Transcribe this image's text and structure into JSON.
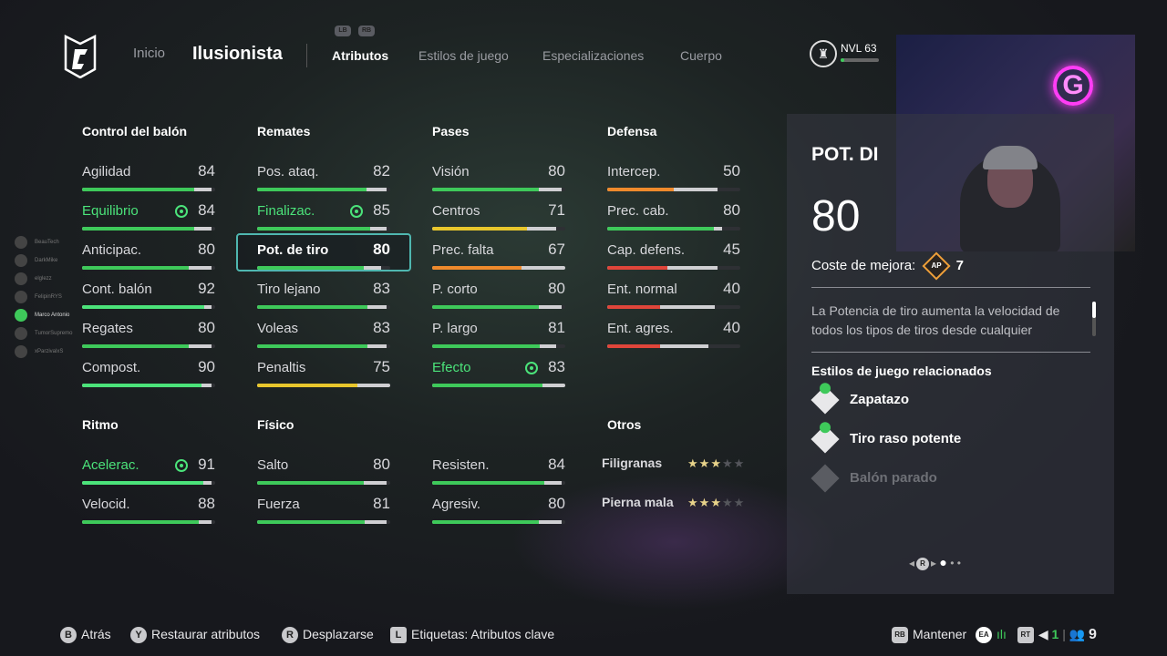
{
  "nav": {
    "home": "Inicio",
    "build_name": "Ilusionista",
    "lb": "LB",
    "rb": "RB",
    "tabs": [
      "Atributos",
      "Estilos de juego",
      "Especializaciones",
      "Cuerpo"
    ],
    "active_tab": 0,
    "level": "NVL 63",
    "level_progress": 0.1,
    "ap_label": "AP"
  },
  "colors": {
    "green": "#3ec95a",
    "key_green": "#4be37a",
    "yellow": "#e8c62c",
    "orange": "#ef8a2c",
    "red": "#e0453a",
    "selected_border": "#4fb7b0"
  },
  "friends": [
    "BeauTech",
    "DarkMike",
    "elglezz",
    "FelipinRYS",
    "Marco Antonio",
    "TumorSupremo",
    "xParzivalxS"
  ],
  "groups": [
    {
      "title": "Control del balón",
      "attrs": [
        {
          "label": "Agilidad",
          "value": 84,
          "cap": 97,
          "color": "green"
        },
        {
          "label": "Equilibrio",
          "value": 84,
          "cap": 97,
          "color": "green",
          "key": true
        },
        {
          "label": "Anticipac.",
          "value": 80,
          "cap": 97,
          "color": "green"
        },
        {
          "label": "Cont. balón",
          "value": 92,
          "cap": 97,
          "color": "key_green"
        },
        {
          "label": "Regates",
          "value": 80,
          "cap": 97,
          "color": "green"
        },
        {
          "label": "Compost.",
          "value": 90,
          "cap": 97,
          "color": "key_green"
        }
      ]
    },
    {
      "title": "Remates",
      "attrs": [
        {
          "label": "Pos. ataq.",
          "value": 82,
          "cap": 97,
          "color": "green"
        },
        {
          "label": "Finalizac.",
          "value": 85,
          "cap": 97,
          "color": "green",
          "key": true
        },
        {
          "label": "Pot. de tiro",
          "value": 80,
          "cap": 93,
          "color": "green",
          "selected": true
        },
        {
          "label": "Tiro lejano",
          "value": 83,
          "cap": 97,
          "color": "green"
        },
        {
          "label": "Voleas",
          "value": 83,
          "cap": 97,
          "color": "green"
        },
        {
          "label": "Penaltis",
          "value": 75,
          "cap": 100,
          "color": "yellow"
        }
      ]
    },
    {
      "title": "Pases",
      "attrs": [
        {
          "label": "Visión",
          "value": 80,
          "cap": 97,
          "color": "green"
        },
        {
          "label": "Centros",
          "value": 71,
          "cap": 93,
          "color": "yellow"
        },
        {
          "label": "Prec. falta",
          "value": 67,
          "cap": 100,
          "color": "orange"
        },
        {
          "label": "P. corto",
          "value": 80,
          "cap": 97,
          "color": "green"
        },
        {
          "label": "P. largo",
          "value": 81,
          "cap": 93,
          "color": "green"
        },
        {
          "label": "Efecto",
          "value": 83,
          "cap": 100,
          "color": "green",
          "key": true
        }
      ]
    },
    {
      "title": "Defensa",
      "attrs": [
        {
          "label": "Intercep.",
          "value": 50,
          "cap": 83,
          "color": "orange"
        },
        {
          "label": "Prec. cab.",
          "value": 80,
          "cap": 86,
          "color": "green"
        },
        {
          "label": "Cap. defens.",
          "value": 45,
          "cap": 83,
          "color": "red"
        },
        {
          "label": "Ent. normal",
          "value": 40,
          "cap": 81,
          "color": "red"
        },
        {
          "label": "Ent. agres.",
          "value": 40,
          "cap": 76,
          "color": "red"
        }
      ]
    },
    {
      "title": "Ritmo",
      "attrs": [
        {
          "label": "Acelerac.",
          "value": 91,
          "cap": 97,
          "color": "key_green",
          "key": true
        },
        {
          "label": "Velocid.",
          "value": 88,
          "cap": 97,
          "color": "green"
        }
      ]
    },
    {
      "title": "Físico",
      "attrs": [
        {
          "label": "Salto",
          "value": 80,
          "cap": 97,
          "color": "green"
        },
        {
          "label": "Fuerza",
          "value": 81,
          "cap": 97,
          "color": "green"
        }
      ]
    },
    {
      "title": "",
      "attrs": [
        {
          "label": "Resisten.",
          "value": 84,
          "cap": 97,
          "color": "green"
        },
        {
          "label": "Agresiv.",
          "value": 80,
          "cap": 97,
          "color": "green"
        }
      ]
    }
  ],
  "others": {
    "title": "Otros",
    "items": [
      {
        "label": "Filigranas",
        "stars": 3,
        "max": 5
      },
      {
        "label": "Pierna mala",
        "stars": 3,
        "max": 5
      }
    ]
  },
  "detail": {
    "title": "POT. DI",
    "value": "80",
    "cost_label": "Coste de mejora:",
    "cost": "7",
    "description": "La Potencia de tiro aumenta la velocidad de todos los tipos de tiros desde cualquier",
    "related_title": "Estilos de juego relacionados",
    "related": [
      {
        "label": "Zapatazo",
        "owned": true
      },
      {
        "label": "Tiro raso potente",
        "owned": true
      },
      {
        "label": "Balón parado",
        "owned": false
      }
    ],
    "page": 1,
    "pages": 3,
    "page_btn": "R"
  },
  "footer": {
    "back_btn": "B",
    "back": "Atrás",
    "reset_btn": "Y",
    "reset": "Restaurar atributos",
    "scroll_btn": "R",
    "scroll": "Desplazarse",
    "tags_btn": "L",
    "tags": "Etiquetas: Atributos clave",
    "hold_btn": "RB",
    "hold": "Mantener",
    "ea": "EA",
    "rt": "RT",
    "count1": "1",
    "count2": "9"
  }
}
